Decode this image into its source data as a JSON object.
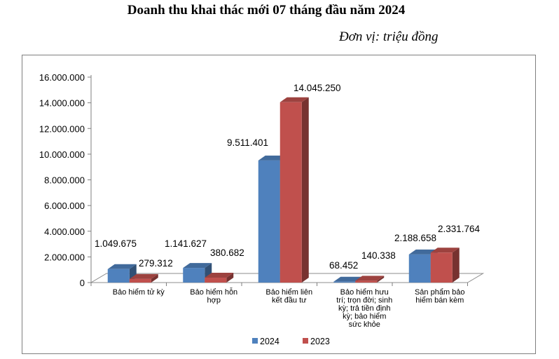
{
  "title": "Doanh thu khai thác mới 07 tháng đầu năm 2024",
  "unit_label": "Đơn vị: triệu đồng",
  "chart_data": {
    "type": "bar",
    "categories": [
      [
        "Bảo hiểm tử kỳ"
      ],
      [
        "Bảo hiểm hỗn",
        "hợp"
      ],
      [
        "Bảo hiểm liên",
        "kết đầu tư"
      ],
      [
        "Bảo hiểm hưu",
        "trí; trọn đời; sinh",
        "kỳ; trả tiền định",
        "kỳ; bảo hiểm",
        "sức khỏe"
      ],
      [
        "Sản phẩm bảo",
        "hiểm bán kèm"
      ]
    ],
    "series": [
      {
        "name": "2024",
        "color": "#4F81BD",
        "values": [
          1049675,
          1141627,
          9511401,
          68452,
          2188658
        ],
        "labels": [
          "1.049.675",
          "1.141.627",
          "9.511.401",
          "68.452",
          "2.188.658"
        ]
      },
      {
        "name": "2023",
        "color": "#C0504D",
        "values": [
          279312,
          380682,
          14045250,
          140338,
          2331764
        ],
        "labels": [
          "279.312",
          "380.682",
          "14.045.250",
          "140.338",
          "2.331.764"
        ]
      }
    ],
    "ylim": [
      0,
      16000000
    ],
    "yticks": [
      "0",
      "2.000.000",
      "4.000.000",
      "6.000.000",
      "8.000.000",
      "10.000.000",
      "12.000.000",
      "14.000.000",
      "16.000.000"
    ],
    "grid": false,
    "legend_position": "bottom"
  }
}
